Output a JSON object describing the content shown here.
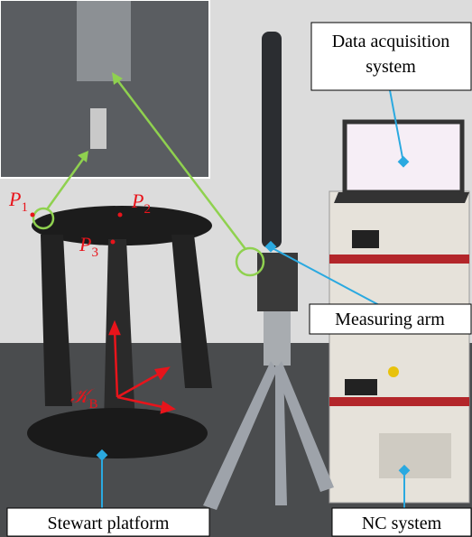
{
  "labels": {
    "data_acquisition": [
      "Data acquisition",
      "system"
    ],
    "measuring_arm": "Measuring arm",
    "stewart_platform": "Stewart platform",
    "nc_system": "NC system"
  },
  "points": [
    {
      "letter": "P",
      "sub": "1"
    },
    {
      "letter": "P",
      "sub": "2"
    },
    {
      "letter": "P",
      "sub": "3"
    }
  ],
  "frame": {
    "letter": "𝒦",
    "sub": "B"
  }
}
